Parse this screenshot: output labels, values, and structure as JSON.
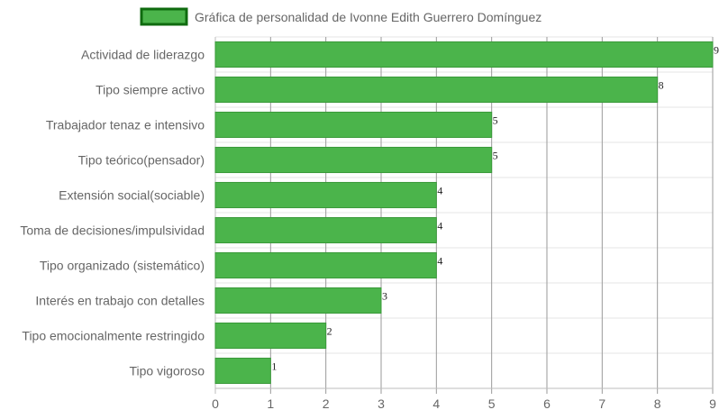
{
  "chart_data": {
    "type": "bar",
    "orientation": "horizontal",
    "categories": [
      "Actividad de liderazgo",
      "Tipo siempre activo",
      "Trabajador tenaz e intensivo",
      "Tipo teórico(pensador)",
      "Extensión social(sociable)",
      "Toma de decisiones/impulsividad",
      "Tipo organizado (sistemático)",
      "Interés en trabajo con detalles",
      "Tipo emocionalmente restringido",
      "Tipo vigoroso"
    ],
    "series": [
      {
        "name": "Gráfica de personalidad de Ivonne Edith Guerrero Domínguez",
        "values": [
          9,
          8,
          5,
          5,
          4,
          4,
          4,
          3,
          2,
          1
        ]
      }
    ],
    "xlim": [
      0,
      9
    ],
    "xticks": [
      "0",
      "1",
      "2",
      "3",
      "4",
      "5",
      "6",
      "7",
      "8",
      "9"
    ],
    "grid": true,
    "legend_position": "top",
    "bar_color": "#4bb44b",
    "bar_border_color": "#3a9a3a",
    "legend_swatch_fill": "#4bb44b",
    "legend_swatch_border": "#0f6b0f"
  }
}
